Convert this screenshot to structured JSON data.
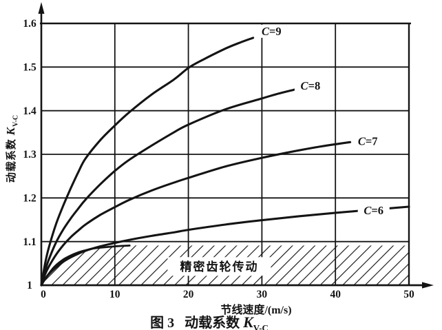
{
  "page": {
    "background": "#ffffff",
    "ink": "#141414"
  },
  "caption": {
    "prefix": "图 3",
    "title": "动载系数",
    "symbol": "K",
    "subscript": "V-C"
  },
  "axes": {
    "y_title_text": "动载系数",
    "y_symbol": "K",
    "y_subscript": "V-C",
    "x_title_text": "节线速度/(m/s)"
  },
  "chart_data": {
    "type": "line",
    "title": "图 3 动载系数 K V-C",
    "xlabel": "节线速度/(m/s)",
    "ylabel": "动载系数 K V-C",
    "xlim": [
      0,
      50
    ],
    "ylim": [
      1.0,
      1.6
    ],
    "x_tick_values": [
      0,
      10,
      20,
      30,
      40,
      50
    ],
    "x_tick_labels": [
      "0",
      "10",
      "20",
      "30",
      "40",
      "50"
    ],
    "y_tick_values": [
      1,
      1.1,
      1.2,
      1.3,
      1.4,
      1.5,
      1.6
    ],
    "y_tick_labels": [
      "1",
      "1.1",
      "1.2",
      "1.3",
      "1.4",
      "1.5",
      "1.6"
    ],
    "grid": true,
    "legend": "inline curve labels",
    "series": [
      {
        "label": "C=9",
        "label_pos": [
          31.3,
          1.582
        ],
        "points": [
          [
            0,
            1
          ],
          [
            0.5,
            1.048
          ],
          [
            1,
            1.085
          ],
          [
            2,
            1.14
          ],
          [
            3,
            1.183
          ],
          [
            4,
            1.222
          ],
          [
            5,
            1.258
          ],
          [
            6,
            1.29
          ],
          [
            8,
            1.332
          ],
          [
            10,
            1.366
          ],
          [
            12,
            1.397
          ],
          [
            15,
            1.437
          ],
          [
            18,
            1.471
          ],
          [
            20,
            1.498
          ],
          [
            22,
            1.517
          ],
          [
            25,
            1.542
          ],
          [
            27,
            1.556
          ],
          [
            28.8,
            1.567
          ]
        ]
      },
      {
        "label": "C=8",
        "label_pos": [
          36.6,
          1.457
        ],
        "points": [
          [
            0,
            1
          ],
          [
            0.5,
            1.032
          ],
          [
            1,
            1.058
          ],
          [
            2,
            1.098
          ],
          [
            3,
            1.128
          ],
          [
            4,
            1.153
          ],
          [
            5,
            1.175
          ],
          [
            6,
            1.196
          ],
          [
            8,
            1.231
          ],
          [
            10,
            1.262
          ],
          [
            12,
            1.288
          ],
          [
            15,
            1.32
          ],
          [
            18,
            1.35
          ],
          [
            20,
            1.368
          ],
          [
            25,
            1.403
          ],
          [
            30,
            1.428
          ],
          [
            32,
            1.438
          ],
          [
            34.6,
            1.449
          ]
        ]
      },
      {
        "label": "C=7",
        "label_pos": [
          44.4,
          1.33
        ],
        "points": [
          [
            0,
            1
          ],
          [
            0.5,
            1.024
          ],
          [
            1,
            1.042
          ],
          [
            2,
            1.07
          ],
          [
            3,
            1.092
          ],
          [
            4,
            1.11
          ],
          [
            5,
            1.125
          ],
          [
            6,
            1.139
          ],
          [
            8,
            1.161
          ],
          [
            10,
            1.179
          ],
          [
            12,
            1.196
          ],
          [
            15,
            1.217
          ],
          [
            18,
            1.235
          ],
          [
            20,
            1.246
          ],
          [
            25,
            1.272
          ],
          [
            30,
            1.292
          ],
          [
            35,
            1.309
          ],
          [
            38,
            1.318
          ],
          [
            42,
            1.328
          ]
        ]
      },
      {
        "label": "C=6",
        "label_pos": [
          45.2,
          1.171
        ],
        "points": [
          [
            0,
            1
          ],
          [
            0.5,
            1.014
          ],
          [
            1,
            1.025
          ],
          [
            2,
            1.041
          ],
          [
            3,
            1.054
          ],
          [
            4,
            1.064
          ],
          [
            5,
            1.072
          ],
          [
            6,
            1.079
          ],
          [
            8,
            1.089
          ],
          [
            10,
            1.097
          ],
          [
            12,
            1.104
          ],
          [
            15,
            1.113
          ],
          [
            18,
            1.121
          ],
          [
            20,
            1.127
          ],
          [
            25,
            1.139
          ],
          [
            30,
            1.149
          ],
          [
            35,
            1.158
          ],
          [
            40,
            1.166
          ],
          [
            45,
            1.173
          ],
          [
            50,
            1.18
          ]
        ]
      }
    ],
    "region": {
      "label": "精密齿轮传动",
      "label_pos": [
        24.2,
        1.043
      ],
      "boundary": [
        [
          0,
          1
        ],
        [
          0.5,
          1.014
        ],
        [
          1,
          1.026
        ],
        [
          1.5,
          1.037
        ],
        [
          2,
          1.046
        ],
        [
          3,
          1.059
        ],
        [
          4,
          1.068
        ],
        [
          5,
          1.075
        ],
        [
          6,
          1.08
        ],
        [
          7,
          1.084
        ],
        [
          8,
          1.086
        ],
        [
          10,
          1.089
        ],
        [
          12,
          1.091
        ],
        [
          16,
          1.091
        ],
        [
          22,
          1.091
        ],
        [
          30,
          1.091
        ],
        [
          40,
          1.091
        ],
        [
          50,
          1.091
        ]
      ],
      "fill": "diagonal-hatch"
    }
  }
}
